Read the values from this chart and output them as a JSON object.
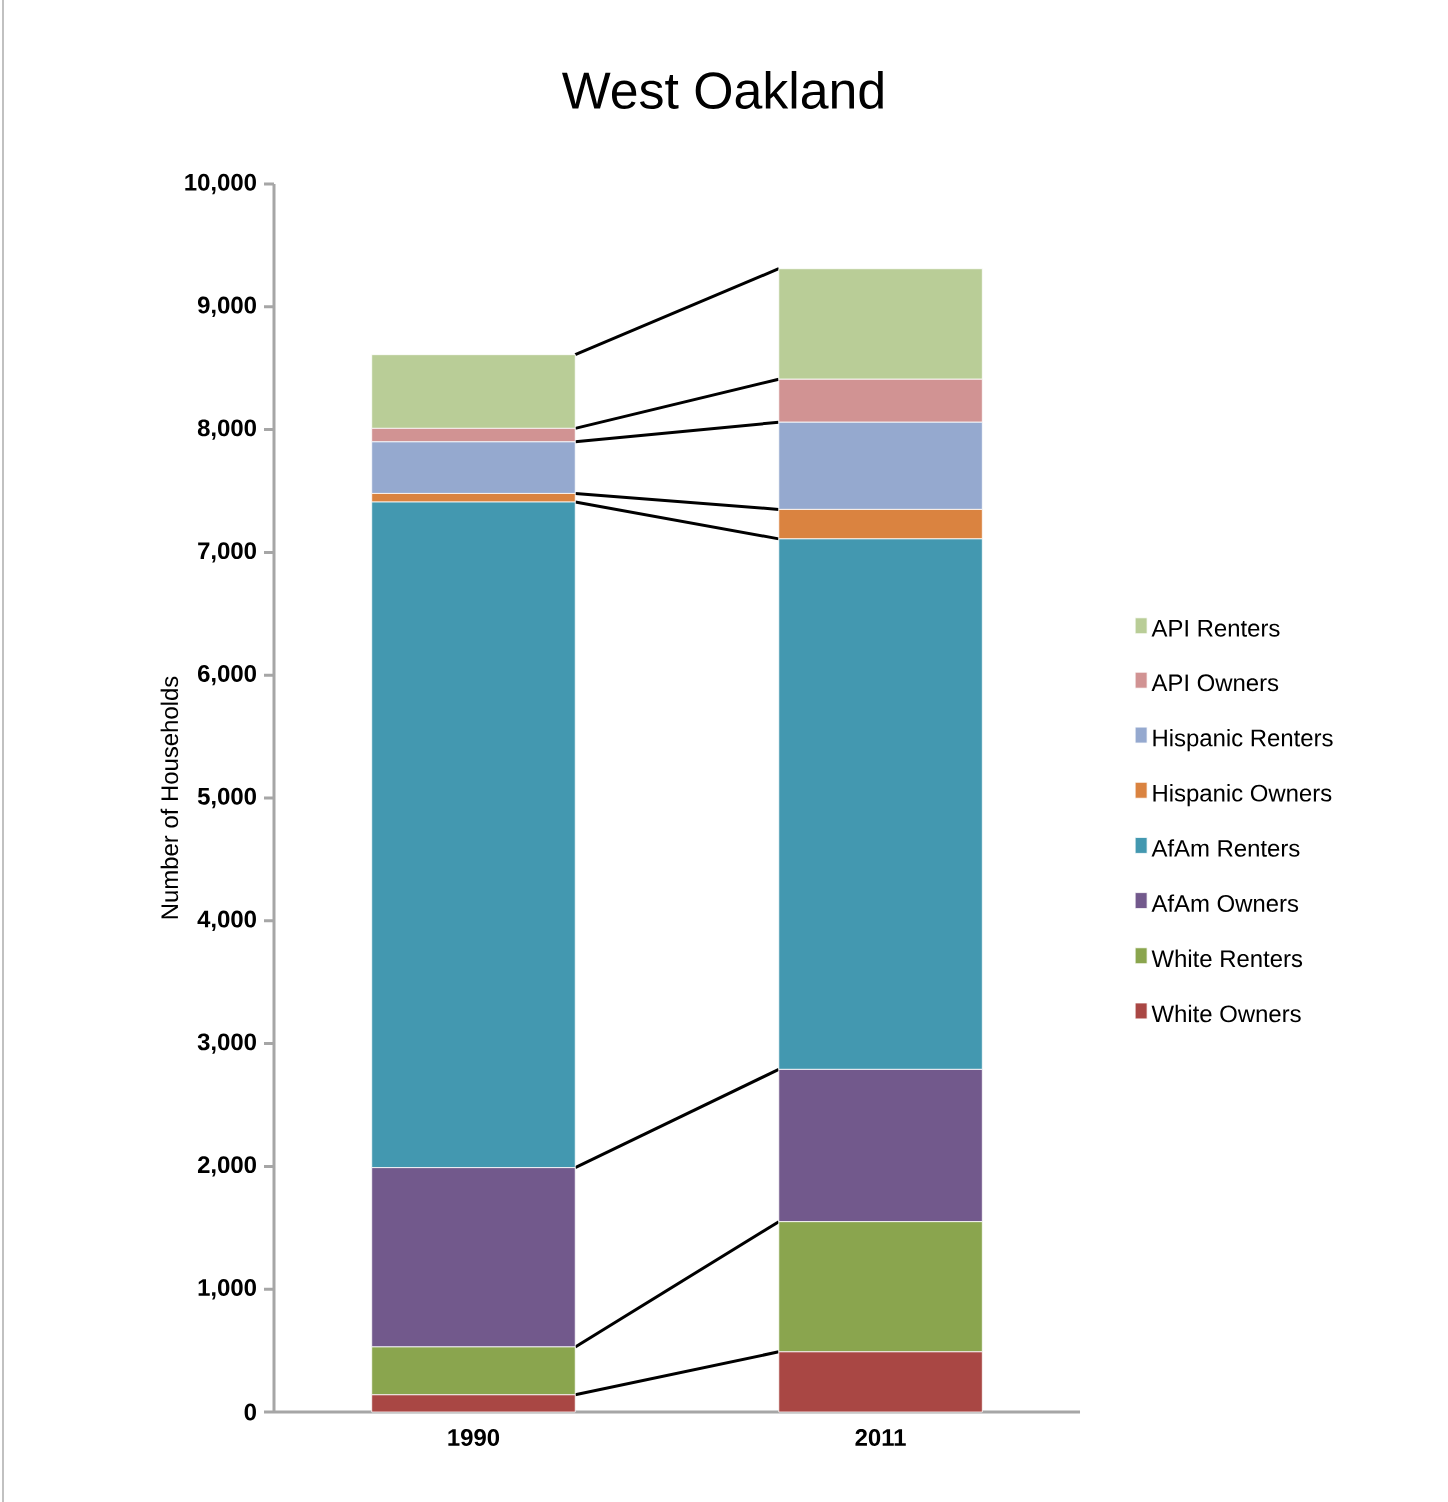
{
  "chart_data": {
    "type": "bar",
    "stacked": true,
    "title": "West Oakland",
    "ylabel": "Number of Households",
    "categories": [
      "1990",
      "2011"
    ],
    "series": [
      {
        "name": "White Owners",
        "color": "#a94744",
        "values": [
          140,
          490
        ]
      },
      {
        "name": "White Renters",
        "color": "#8aa54e",
        "values": [
          390,
          1060
        ]
      },
      {
        "name": "AfAm Owners",
        "color": "#72598c",
        "values": [
          1460,
          1240
        ]
      },
      {
        "name": "AfAm Renters",
        "color": "#4398b0",
        "values": [
          5420,
          4320
        ]
      },
      {
        "name": "Hispanic Owners",
        "color": "#da8340",
        "values": [
          70,
          240
        ]
      },
      {
        "name": "Hispanic Renters",
        "color": "#95a9cf",
        "values": [
          420,
          710
        ]
      },
      {
        "name": "API Owners",
        "color": "#d19393",
        "values": [
          110,
          350
        ]
      },
      {
        "name": "API Renters",
        "color": "#b9cd97",
        "values": [
          600,
          900
        ]
      }
    ],
    "ylim": [
      0,
      10000
    ],
    "yticks": [
      0,
      {
        "value": 1000,
        "label": "1,000"
      },
      {
        "value": 2000,
        "label": "2,000"
      },
      {
        "value": 3000,
        "label": "3,000"
      },
      {
        "value": 4000,
        "label": "4,000"
      },
      {
        "value": 5000,
        "label": "5,000"
      },
      {
        "value": 6000,
        "label": "6,000"
      },
      {
        "value": 7000,
        "label": "7,000"
      },
      {
        "value": 8000,
        "label": "8,000"
      },
      {
        "value": 9000,
        "label": "9,000"
      },
      {
        "value": 10000,
        "label": "10,000"
      }
    ],
    "grid": false,
    "legend": "right"
  }
}
